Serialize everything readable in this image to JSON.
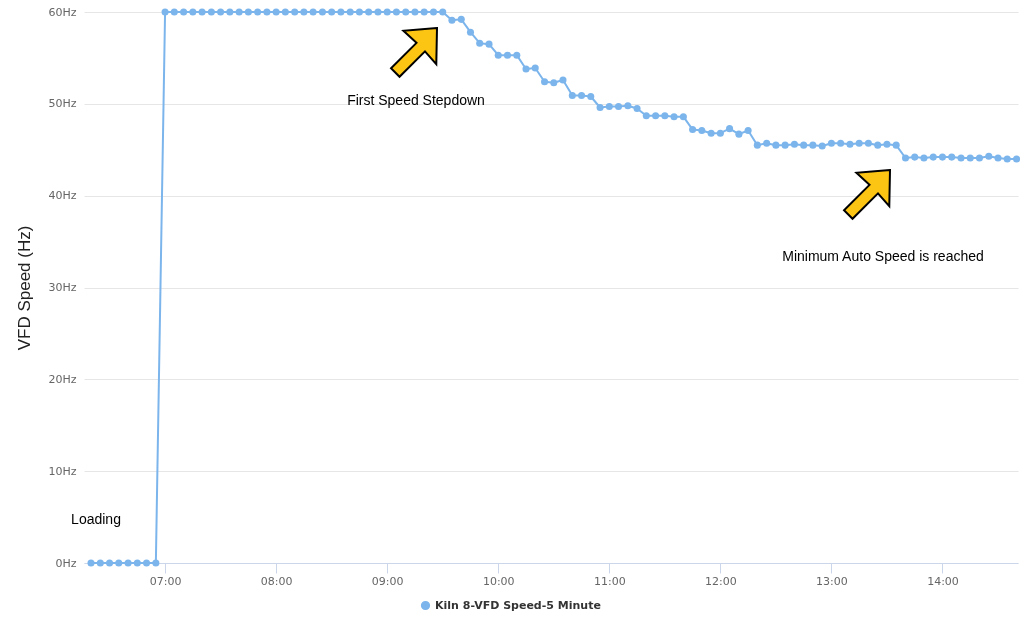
{
  "chart_data": {
    "type": "line",
    "ylabel": "VFD Speed (Hz)",
    "x": [
      6.333,
      6.417,
      6.5,
      6.583,
      6.667,
      6.75,
      6.833,
      6.917,
      7,
      7.083,
      7.167,
      7.25,
      7.333,
      7.417,
      7.5,
      7.583,
      7.667,
      7.75,
      7.833,
      7.917,
      8,
      8.083,
      8.167,
      8.25,
      8.333,
      8.417,
      8.5,
      8.583,
      8.667,
      8.75,
      8.833,
      8.917,
      9,
      9.083,
      9.167,
      9.25,
      9.333,
      9.417,
      9.5,
      9.583,
      9.667,
      9.75,
      9.833,
      9.917,
      10,
      10.083,
      10.167,
      10.25,
      10.333,
      10.417,
      10.5,
      10.583,
      10.667,
      10.75,
      10.833,
      10.917,
      11,
      11.083,
      11.167,
      11.25,
      11.333,
      11.417,
      11.5,
      11.583,
      11.667,
      11.75,
      11.833,
      11.917,
      12,
      12.083,
      12.167,
      12.25,
      12.333,
      12.417,
      12.5,
      12.583,
      12.667,
      12.75,
      12.833,
      12.917,
      13,
      13.083,
      13.167,
      13.25,
      13.333,
      13.417,
      13.5,
      13.583,
      13.667,
      13.75,
      13.833,
      13.917,
      14,
      14.083,
      14.167,
      14.25,
      14.333,
      14.417,
      14.5,
      14.583,
      14.667
    ],
    "series": [
      {
        "name": "Kiln 8-VFD Speed-5 Minute",
        "color": "#7cb5ec",
        "values": [
          0,
          0,
          0,
          0,
          0,
          0,
          0,
          0,
          60,
          60,
          60,
          60,
          60,
          60,
          60,
          60,
          60,
          60,
          60,
          60,
          60,
          60,
          60,
          60,
          60,
          60,
          60,
          60,
          60,
          60,
          60,
          60,
          60,
          60,
          60,
          60,
          60,
          60,
          60,
          59.1,
          59.2,
          57.8,
          56.6,
          56.5,
          55.3,
          55.3,
          55.3,
          53.8,
          53.9,
          52.4,
          52.3,
          52.6,
          50.9,
          50.9,
          50.8,
          49.6,
          49.7,
          49.7,
          49.8,
          49.5,
          48.7,
          48.7,
          48.7,
          48.6,
          48.6,
          47.2,
          47.1,
          46.8,
          46.8,
          47.3,
          46.7,
          47.1,
          45.5,
          45.7,
          45.5,
          45.5,
          45.6,
          45.5,
          45.5,
          45.4,
          45.7,
          45.7,
          45.6,
          45.7,
          45.7,
          45.5,
          45.6,
          45.5,
          44.1,
          44.2,
          44.1,
          44.2,
          44.2,
          44.2,
          44.1,
          44.1,
          44.1,
          44.3,
          44.1,
          44.0,
          44.0
        ]
      }
    ],
    "xlim": [
      6.27,
      14.68
    ],
    "xticks": [
      {
        "value": 7,
        "label": "07:00"
      },
      {
        "value": 8,
        "label": "08:00"
      },
      {
        "value": 9,
        "label": "09:00"
      },
      {
        "value": 10,
        "label": "10:00"
      },
      {
        "value": 11,
        "label": "11:00"
      },
      {
        "value": 12,
        "label": "12:00"
      },
      {
        "value": 13,
        "label": "13:00"
      },
      {
        "value": 14,
        "label": "14:00"
      }
    ],
    "ylim": [
      0,
      60
    ],
    "yticks": [
      {
        "value": 0,
        "label": "0Hz"
      },
      {
        "value": 10,
        "label": "10Hz"
      },
      {
        "value": 20,
        "label": "20Hz"
      },
      {
        "value": 30,
        "label": "30Hz"
      },
      {
        "value": 40,
        "label": "40Hz"
      },
      {
        "value": 50,
        "label": "50Hz"
      },
      {
        "value": 60,
        "label": "60Hz"
      }
    ],
    "annotations": [
      "Loading",
      "First Speed Stepdown",
      "Minimum Auto Speed is reached"
    ],
    "grid": "y",
    "legend": "bottom",
    "marker": "circle",
    "line_style": "solid"
  }
}
